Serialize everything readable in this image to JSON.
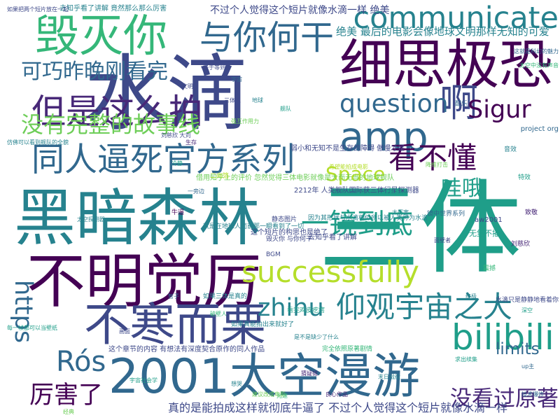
{
  "colors": {
    "background": "#ffffff",
    "palette": [
      "#440154",
      "#482878",
      "#3e4989",
      "#31688e",
      "#26828e",
      "#1f9e89",
      "#35b779",
      "#6ece58",
      "#b5de2b",
      "#fde725"
    ]
  },
  "words": [
    {
      "text": "水滴",
      "color": "#3e4989"
    },
    {
      "text": "三体",
      "color": "#1f9e89"
    },
    {
      "text": "黑暗森林",
      "color": "#26828e"
    },
    {
      "text": "2001太空漫游",
      "color": "#31688e"
    },
    {
      "text": "不明觉厉",
      "color": "#440154"
    },
    {
      "text": "细思极恐",
      "color": "#440154"
    },
    {
      "text": "不寒而栗",
      "color": "#3e4989"
    },
    {
      "text": "毁灭你",
      "color": "#35b779"
    },
    {
      "text": "communicate",
      "color": "#26828e"
    },
    {
      "text": "amp",
      "color": "#31688e"
    },
    {
      "text": "successfully",
      "color": "#b5de2b"
    },
    {
      "text": "同人逼死官方系列",
      "color": "#31688e"
    },
    {
      "text": "与你何干",
      "color": "#31688e"
    },
    {
      "text": "仰观宇宙之大",
      "color": "#26828e"
    },
    {
      "text": "但是这么拍",
      "color": "#482878"
    },
    {
      "text": "可巧昨晚刚看完",
      "color": "#31688e"
    },
    {
      "text": "啊",
      "color": "#3e4989"
    },
    {
      "text": "bilibili",
      "color": "#1f9e89"
    },
    {
      "text": "question",
      "color": "#31688e"
    },
    {
      "text": "一镜到底",
      "color": "#1f9e89"
    },
    {
      "text": "没有完整的故事线",
      "color": "#6ece58"
    },
    {
      "text": "看不懂",
      "color": "#440154"
    },
    {
      "text": "zhihu",
      "color": "#26828e"
    },
    {
      "text": "https",
      "color": "#31688e"
    },
    {
      "text": "Rós",
      "color": "#31688e"
    },
    {
      "text": "Sigur",
      "color": "#440154"
    },
    {
      "text": "Space",
      "color": "#b5de2b"
    },
    {
      "text": "厉害了",
      "color": "#440154"
    },
    {
      "text": "没看过原著",
      "color": "#482878"
    },
    {
      "text": "limits",
      "color": "#31688e"
    },
    {
      "text": "哇哦",
      "color": "#1f9e89"
    },
    {
      "text": "不过个人觉得这个短片就像水滴一样 绝美",
      "color": "#3e4989"
    },
    {
      "text": "真的是能拍成这样就彻底牛逼了 不过个人觉得这个短片就像水滴一样",
      "color": "#3e4989"
    },
    {
      "text": "绝美 最后的电影会像地球文明那样无知的可爱",
      "color": "#26828e"
    },
    {
      "text": "借用知乎上的评价 忽然觉得三体电影就像是大而无当的地球舰队",
      "color": "#6ece58"
    },
    {
      "text": "2212年 人类舰队国际获三体行星探测器",
      "color": "#3e4989"
    },
    {
      "text": "这个章节的内容 有想法有深度契合原作的同人作品",
      "color": "#3e4989"
    },
    {
      "text": "去知乎看了讲解 竟然那么那么厉害",
      "color": "#26828e"
    },
    {
      "text": "就是在地球人面前那一瞬看到了一切",
      "color": "#26828e"
    },
    {
      "text": "这个短片的构思也是绝了",
      "color": "#3e4989"
    },
    {
      "text": "去知乎看了讲解",
      "color": "#3e4989"
    },
    {
      "text": "因为其形状与水滴相似所以被人类称为水滴",
      "color": "#26828e"
    },
    {
      "text": "弱小和无知不是生存的障碍 傲慢才是",
      "color": "#3e4989"
    },
    {
      "text": "project org",
      "color": "#31688e"
    },
    {
      "text": "aw2001",
      "color": "#3e4989"
    },
    {
      "text": "无堡不摧",
      "color": "#1f9e89"
    },
    {
      "text": "镜中世界系列",
      "color": "#31688e"
    },
    {
      "text": "毁灭你 与你何干",
      "color": "#3e4989"
    },
    {
      "text": "刘慈欣",
      "color": "#482878"
    },
    {
      "text": "科幻",
      "color": "#1f9e89"
    },
    {
      "text": "完全依照原著剧情",
      "color": "#35b779"
    },
    {
      "text": "希望能拍成电影",
      "color": "#b5de2b"
    },
    {
      "text": "太空探测器",
      "color": "#26828e"
    },
    {
      "text": "强互作用力",
      "color": "#6ece58"
    },
    {
      "text": "智子",
      "color": "#31688e"
    },
    {
      "text": "面壁者",
      "color": "#3e4989"
    },
    {
      "text": "破壁人",
      "color": "#35b779"
    },
    {
      "text": "末日战役",
      "color": "#26828e"
    },
    {
      "text": "宇宙社会学",
      "color": "#1f9e89"
    },
    {
      "text": "猜疑链",
      "color": "#482878"
    },
    {
      "text": "技术爆炸",
      "color": "#31688e"
    },
    {
      "text": "降维打击",
      "color": "#6ece58"
    },
    {
      "text": "二向箔",
      "color": "#b5de2b"
    },
    {
      "text": "静态图片",
      "color": "#3e4989"
    },
    {
      "text": "如果三体是真的",
      "color": "#26828e"
    },
    {
      "text": "水滴只是静静地看着你",
      "color": "#3e4989"
    },
    {
      "text": "如果真能拍出来就好了",
      "color": "#26828e"
    },
    {
      "text": "看完鸡皮疙瘩",
      "color": "#1f9e89"
    },
    {
      "text": "BGM",
      "color": "#3e4989"
    },
    {
      "text": "配乐",
      "color": "#31688e"
    },
    {
      "text": "音效",
      "color": "#26828e"
    },
    {
      "text": "特效",
      "color": "#1f9e89"
    },
    {
      "text": "震撼",
      "color": "#35b779"
    },
    {
      "text": "牛逼",
      "color": "#440154"
    },
    {
      "text": "致敬",
      "color": "#482878"
    },
    {
      "text": "经典",
      "color": "#6ece58"
    },
    {
      "text": "三体人",
      "color": "#3e4989"
    },
    {
      "text": "地球",
      "color": "#26828e"
    },
    {
      "text": "舰队",
      "color": "#1f9e89"
    },
    {
      "text": "宇宙",
      "color": "#31688e"
    },
    {
      "text": "文明",
      "color": "#3e4989"
    },
    {
      "text": "生存",
      "color": "#482878"
    },
    {
      "text": "终极",
      "color": "#26828e"
    },
    {
      "text": "深空",
      "color": "#1f9e89"
    },
    {
      "text": "光速",
      "color": "#35b779"
    },
    {
      "text": "一旁边",
      "color": "#31688e"
    },
    {
      "text": "刘慈欣 大刘",
      "color": "#3e4989"
    },
    {
      "text": "如果把两个短片放在一起",
      "color": "#3e4989"
    },
    {
      "text": "仿佛可以看到舰队的全貌",
      "color": "#26828e"
    },
    {
      "text": "每一帧都可以当壁纸",
      "color": "#1f9e89"
    },
    {
      "text": "这就是科幻的魅力",
      "color": "#31688e"
    },
    {
      "text": "太空中没有声音",
      "color": "#35b779"
    },
    {
      "text": "是不是缺少了什么",
      "color": "#26828e"
    },
    {
      "text": "终于等到了",
      "color": "#3e4989"
    },
    {
      "text": "良心作品",
      "color": "#482878"
    },
    {
      "text": "求出续集",
      "color": "#1f9e89"
    },
    {
      "text": "up主",
      "color": "#31688e"
    },
    {
      "text": "太厉害",
      "color": "#26828e"
    },
    {
      "text": "建议改成电影",
      "color": "#6ece58"
    },
    {
      "text": "画面",
      "color": "#3e4989"
    },
    {
      "text": "想哭",
      "color": "#26828e"
    },
    {
      "text": "冷静",
      "color": "#1f9e89"
    }
  ]
}
